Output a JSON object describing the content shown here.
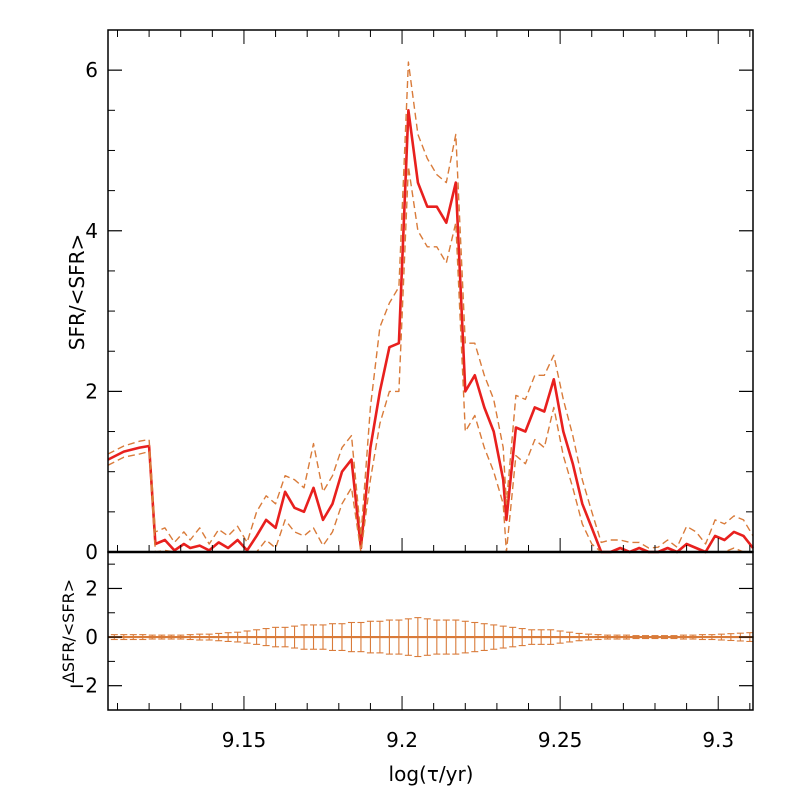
{
  "chart_data": [
    {
      "type": "line",
      "panel": "top",
      "ylabel": "SFR/<SFR>",
      "xlim": [
        9.107,
        9.311
      ],
      "ylim": [
        0,
        6.5
      ],
      "yticks": [
        0,
        2,
        4,
        6
      ],
      "ytick_labels": [
        "0",
        "2",
        "4",
        "6"
      ],
      "grid": false,
      "x": [
        9.107,
        9.112,
        9.117,
        9.12,
        9.122,
        9.125,
        9.128,
        9.131,
        9.133,
        9.136,
        9.139,
        9.142,
        9.145,
        9.148,
        9.151,
        9.154,
        9.157,
        9.16,
        9.163,
        9.166,
        9.169,
        9.172,
        9.175,
        9.178,
        9.181,
        9.184,
        9.187,
        9.19,
        9.193,
        9.196,
        9.199,
        9.202,
        9.205,
        9.208,
        9.211,
        9.214,
        9.217,
        9.22,
        9.223,
        9.226,
        9.229,
        9.232,
        9.233,
        9.236,
        9.239,
        9.242,
        9.245,
        9.248,
        9.251,
        9.254,
        9.257,
        9.26,
        9.263,
        9.266,
        9.269,
        9.272,
        9.275,
        9.278,
        9.281,
        9.284,
        9.287,
        9.29,
        9.293,
        9.296,
        9.299,
        9.302,
        9.305,
        9.308,
        9.311
      ],
      "series": [
        {
          "role": "best-fit",
          "color": "#e8201e",
          "style": "solid",
          "values": [
            1.15,
            1.25,
            1.3,
            1.32,
            0.1,
            0.15,
            0.02,
            0.1,
            0.05,
            0.08,
            0.02,
            0.12,
            0.05,
            0.15,
            0.02,
            0.2,
            0.4,
            0.3,
            0.75,
            0.55,
            0.5,
            0.8,
            0.4,
            0.6,
            1.0,
            1.15,
            0.05,
            1.3,
            2.0,
            2.55,
            2.6,
            5.5,
            4.6,
            4.3,
            4.3,
            4.1,
            4.6,
            2.0,
            2.2,
            1.8,
            1.5,
            0.9,
            0.4,
            1.55,
            1.5,
            1.8,
            1.75,
            2.15,
            1.5,
            1.1,
            0.6,
            0.3,
            0.0,
            0.0,
            0.05,
            0.0,
            0.05,
            0.0,
            0.0,
            0.05,
            0.0,
            0.1,
            0.05,
            0.0,
            0.2,
            0.15,
            0.25,
            0.2,
            0.05
          ]
        },
        {
          "role": "upper-bound",
          "color": "#d97b3a",
          "style": "dashed",
          "values": [
            1.22,
            1.32,
            1.38,
            1.4,
            0.25,
            0.3,
            0.12,
            0.25,
            0.15,
            0.3,
            0.1,
            0.28,
            0.2,
            0.32,
            0.12,
            0.5,
            0.7,
            0.6,
            0.95,
            0.9,
            0.8,
            1.35,
            0.75,
            0.95,
            1.3,
            1.45,
            0.2,
            1.8,
            2.8,
            3.1,
            3.3,
            6.1,
            5.2,
            4.9,
            4.7,
            4.6,
            5.2,
            2.6,
            2.6,
            2.2,
            1.9,
            1.3,
            0.6,
            1.95,
            1.9,
            2.2,
            2.2,
            2.45,
            1.9,
            1.45,
            0.9,
            0.5,
            0.12,
            0.15,
            0.15,
            0.12,
            0.12,
            0.05,
            0.06,
            0.15,
            0.06,
            0.32,
            0.25,
            0.1,
            0.4,
            0.35,
            0.45,
            0.4,
            0.2
          ]
        },
        {
          "role": "lower-bound",
          "color": "#d97b3a",
          "style": "dashed",
          "values": [
            1.08,
            1.18,
            1.22,
            1.25,
            0.0,
            0.02,
            0.0,
            0.0,
            0.0,
            0.0,
            0.0,
            0.0,
            0.0,
            0.0,
            0.0,
            0.0,
            0.15,
            0.05,
            0.4,
            0.25,
            0.2,
            0.3,
            0.08,
            0.25,
            0.6,
            0.8,
            0.0,
            0.9,
            1.6,
            2.0,
            2.0,
            4.8,
            4.0,
            3.8,
            3.8,
            3.6,
            4.1,
            1.5,
            1.7,
            1.3,
            1.0,
            0.6,
            0.0,
            1.2,
            1.1,
            1.4,
            1.3,
            1.8,
            1.2,
            0.8,
            0.35,
            0.1,
            0.0,
            0.0,
            0.0,
            0.0,
            0.0,
            0.0,
            0.0,
            0.0,
            0.0,
            0.0,
            0.0,
            0.0,
            0.0,
            0.0,
            0.05,
            0.0,
            0.0
          ]
        }
      ]
    },
    {
      "type": "scatter",
      "panel": "bottom",
      "xlabel": "log(τ/yr)",
      "ylabel": "ΔSFR/<SFR>",
      "xlim": [
        9.107,
        9.311
      ],
      "ylim": [
        -3,
        3.5
      ],
      "xticks": [
        9.15,
        9.2,
        9.25,
        9.3
      ],
      "xtick_labels": [
        "9.15",
        "9.2",
        "9.25",
        "9.3"
      ],
      "yticks": [
        -2,
        0,
        2
      ],
      "ytick_labels": [
        "−2",
        "0",
        "2"
      ],
      "grid": false,
      "color": "#d97b3a",
      "x": [
        9.109,
        9.112,
        9.115,
        9.118,
        9.121,
        9.124,
        9.127,
        9.13,
        9.133,
        9.136,
        9.139,
        9.142,
        9.145,
        9.148,
        9.151,
        9.154,
        9.157,
        9.16,
        9.163,
        9.166,
        9.169,
        9.172,
        9.175,
        9.178,
        9.181,
        9.184,
        9.187,
        9.19,
        9.193,
        9.196,
        9.199,
        9.202,
        9.205,
        9.208,
        9.211,
        9.214,
        9.217,
        9.22,
        9.223,
        9.226,
        9.229,
        9.232,
        9.235,
        9.238,
        9.241,
        9.244,
        9.247,
        9.25,
        9.253,
        9.256,
        9.259,
        9.262,
        9.265,
        9.268,
        9.271,
        9.274,
        9.277,
        9.28,
        9.283,
        9.286,
        9.289,
        9.292,
        9.295,
        9.298,
        9.301,
        9.304,
        9.307,
        9.31
      ],
      "values": [
        0.0,
        0.0,
        0.0,
        0.0,
        0.0,
        0.0,
        0.0,
        0.0,
        0.0,
        0.0,
        0.0,
        0.0,
        0.0,
        0.0,
        0.0,
        0.0,
        0.0,
        0.0,
        0.0,
        0.0,
        0.0,
        0.0,
        0.0,
        0.0,
        0.0,
        0.0,
        0.0,
        0.0,
        0.0,
        0.0,
        0.0,
        0.0,
        0.0,
        0.0,
        0.0,
        0.0,
        0.0,
        0.0,
        0.0,
        0.0,
        0.0,
        0.0,
        0.0,
        0.0,
        0.0,
        0.0,
        0.0,
        0.0,
        0.0,
        0.0,
        0.0,
        0.0,
        0.0,
        0.0,
        0.0,
        0.0,
        0.0,
        0.0,
        0.0,
        0.0,
        0.0,
        0.0,
        0.0,
        0.0,
        0.0,
        0.0,
        0.0,
        0.0
      ],
      "errors": [
        0.1,
        0.1,
        0.1,
        0.1,
        0.08,
        0.08,
        0.08,
        0.08,
        0.1,
        0.12,
        0.12,
        0.15,
        0.18,
        0.2,
        0.25,
        0.3,
        0.35,
        0.4,
        0.4,
        0.45,
        0.5,
        0.5,
        0.5,
        0.55,
        0.55,
        0.6,
        0.6,
        0.65,
        0.65,
        0.7,
        0.7,
        0.75,
        0.8,
        0.75,
        0.7,
        0.7,
        0.7,
        0.65,
        0.6,
        0.55,
        0.5,
        0.45,
        0.4,
        0.35,
        0.3,
        0.3,
        0.3,
        0.25,
        0.2,
        0.15,
        0.12,
        0.1,
        0.08,
        0.08,
        0.08,
        0.06,
        0.06,
        0.06,
        0.06,
        0.06,
        0.08,
        0.08,
        0.1,
        0.1,
        0.12,
        0.14,
        0.16,
        0.18
      ]
    }
  ]
}
